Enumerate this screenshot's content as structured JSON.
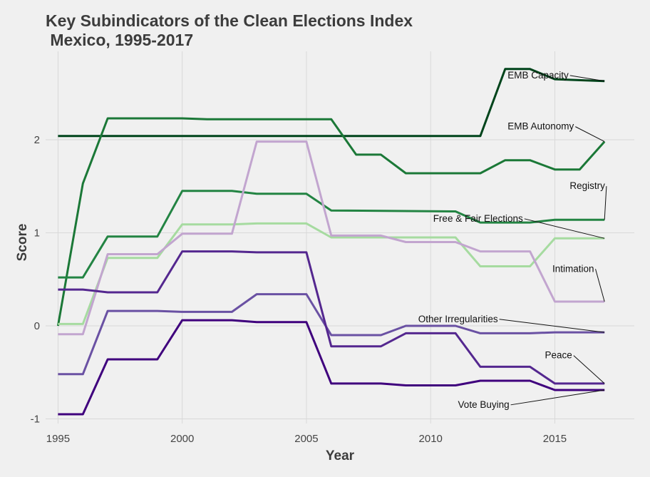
{
  "chart_data": {
    "type": "line",
    "title_line1": "Key Subindicators of the Clean Elections Index",
    "title_line2": " Mexico, 1995-2017",
    "xlabel": "Year",
    "ylabel": "Score",
    "xlim": [
      1994.5,
      2018.2
    ],
    "ylim": [
      -1.05,
      2.95
    ],
    "xticks": [
      1995,
      2000,
      2005,
      2010,
      2015
    ],
    "yticks": [
      -1,
      0,
      1,
      2
    ],
    "grid": true,
    "legend": "direct labels at right end of lines",
    "series": [
      {
        "name": "EMB Capacity",
        "color": "#00441b",
        "x": [
          1995,
          2012,
          2013,
          2014,
          2015,
          2017
        ],
        "y": [
          2.04,
          2.04,
          2.76,
          2.76,
          2.65,
          2.63
        ]
      },
      {
        "name": "EMB Autonomy",
        "color": "#1b7837",
        "x": [
          1995,
          1996,
          1997,
          2000,
          2001,
          2006,
          2007,
          2008,
          2009,
          2012,
          2013,
          2014,
          2015,
          2016,
          2017
        ],
        "y": [
          0.0,
          1.53,
          2.23,
          2.23,
          2.22,
          2.22,
          1.84,
          1.84,
          1.64,
          1.64,
          1.78,
          1.78,
          1.68,
          1.68,
          1.98
        ]
      },
      {
        "name": "Registry",
        "color": "#238443",
        "x": [
          1995,
          1996,
          1997,
          1999,
          2000,
          2002,
          2003,
          2005,
          2006,
          2011,
          2012,
          2014,
          2015,
          2017
        ],
        "y": [
          0.52,
          0.52,
          0.96,
          0.96,
          1.45,
          1.45,
          1.42,
          1.42,
          1.24,
          1.23,
          1.11,
          1.11,
          1.14,
          1.14
        ]
      },
      {
        "name": "Free & Fair Elections",
        "color": "#a6dba0",
        "x": [
          1995,
          1996,
          1997,
          1999,
          2000,
          2002,
          2003,
          2005,
          2006,
          2008,
          2009,
          2011,
          2012,
          2014,
          2015,
          2017
        ],
        "y": [
          0.02,
          0.02,
          0.73,
          0.73,
          1.09,
          1.09,
          1.1,
          1.1,
          0.95,
          0.95,
          0.95,
          0.95,
          0.64,
          0.64,
          0.94,
          0.94
        ]
      },
      {
        "name": "Intimation",
        "color": "#c2a5cf",
        "x": [
          1995,
          1996,
          1997,
          1999,
          2000,
          2002,
          2003,
          2005,
          2006,
          2008,
          2009,
          2011,
          2012,
          2014,
          2015,
          2017
        ],
        "y": [
          -0.09,
          -0.09,
          0.77,
          0.77,
          0.99,
          0.99,
          1.98,
          1.98,
          0.97,
          0.97,
          0.9,
          0.9,
          0.8,
          0.8,
          0.26,
          0.26
        ]
      },
      {
        "name": "Other Irregularities",
        "color": "#6a51a3",
        "x": [
          1995,
          1996,
          1997,
          1999,
          2000,
          2002,
          2003,
          2005,
          2006,
          2008,
          2009,
          2011,
          2012,
          2014,
          2015,
          2017
        ],
        "y": [
          -0.52,
          -0.52,
          0.16,
          0.16,
          0.15,
          0.15,
          0.34,
          0.34,
          -0.1,
          -0.1,
          0.0,
          0.0,
          -0.08,
          -0.08,
          -0.07,
          -0.07
        ]
      },
      {
        "name": "Peace",
        "color": "#54278f",
        "x": [
          1995,
          1996,
          1997,
          1999,
          2000,
          2002,
          2003,
          2005,
          2006,
          2008,
          2009,
          2011,
          2012,
          2014,
          2015,
          2017
        ],
        "y": [
          0.39,
          0.39,
          0.36,
          0.36,
          0.8,
          0.8,
          0.79,
          0.79,
          -0.22,
          -0.22,
          -0.08,
          -0.08,
          -0.44,
          -0.44,
          -0.62,
          -0.62
        ]
      },
      {
        "name": "Vote Buying",
        "color": "#3f007d",
        "x": [
          1995,
          1996,
          1997,
          1999,
          2000,
          2002,
          2003,
          2005,
          2006,
          2008,
          2009,
          2011,
          2012,
          2014,
          2015,
          2017
        ],
        "y": [
          -0.95,
          -0.95,
          -0.36,
          -0.36,
          0.06,
          0.06,
          0.04,
          0.04,
          -0.62,
          -0.62,
          -0.64,
          -0.64,
          -0.59,
          -0.59,
          -0.69,
          -0.69
        ]
      }
    ],
    "annotations": [
      {
        "text": "EMB Capacity",
        "series": "EMB Capacity",
        "x": 2013.1,
        "y": 2.66
      },
      {
        "text": "EMB Autonomy",
        "series": "EMB Autonomy",
        "x": 2013.1,
        "y": 2.11
      },
      {
        "text": "Registry",
        "series": "Registry",
        "x": 2015.6,
        "y": 1.47
      },
      {
        "text": "Free & Fair Elections",
        "series": "Free & Fair Elections",
        "x": 2010.1,
        "y": 1.12
      },
      {
        "text": "Intimation",
        "series": "Intimation",
        "x": 2014.9,
        "y": 0.58
      },
      {
        "text": "Other Irregularities",
        "series": "Other Irregularities",
        "x": 2009.5,
        "y": 0.04
      },
      {
        "text": "Peace",
        "series": "Peace",
        "x": 2014.6,
        "y": -0.35
      },
      {
        "text": "Vote Buying",
        "series": "Vote Buying",
        "x": 2011.1,
        "y": -0.88
      }
    ]
  }
}
